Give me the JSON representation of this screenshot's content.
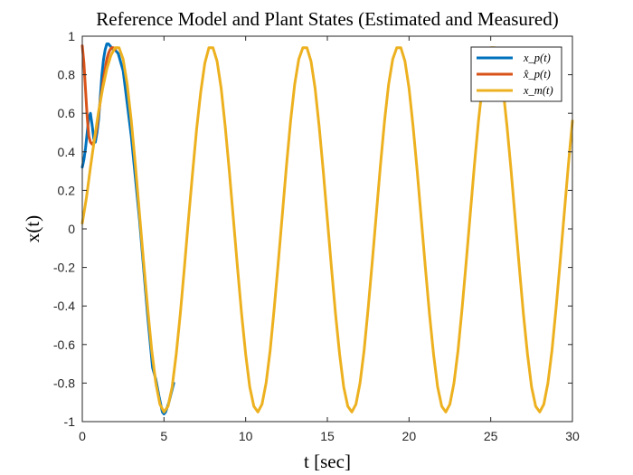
{
  "chart_data": {
    "type": "line",
    "title": "Reference Model and Plant States (Estimated and Measured)",
    "xlabel": "t  [sec]",
    "ylabel": "x(t)",
    "xlim": [
      0,
      30
    ],
    "ylim": [
      -1,
      1
    ],
    "xticks": [
      0,
      5,
      10,
      15,
      20,
      25,
      30
    ],
    "yticks": [
      -1,
      -0.8,
      -0.6,
      -0.4,
      -0.2,
      0,
      0.2,
      0.4,
      0.6,
      0.8,
      1
    ],
    "xtick_labels": [
      "0",
      "5",
      "10",
      "15",
      "20",
      "25",
      "30"
    ],
    "ytick_labels": [
      "-1",
      "-0.8",
      "-0.6",
      "-0.4",
      "-0.2",
      "0",
      "0.2",
      "0.4",
      "0.6",
      "0.8",
      "1"
    ],
    "grid": false,
    "legend_position": "top-right",
    "series": [
      {
        "name": "x_p(t)",
        "color": "#0072BD",
        "x": [
          0,
          0.1,
          0.2,
          0.3,
          0.4,
          0.5,
          0.6,
          0.7,
          0.8,
          0.9,
          1.0,
          1.1,
          1.2,
          1.3,
          1.4,
          1.5,
          1.6,
          1.7,
          1.8,
          1.9,
          2.0,
          2.2,
          2.5,
          3.0,
          3.5,
          4.0,
          4.3,
          4.5,
          4.7,
          4.9,
          5.0,
          5.1,
          5.3,
          5.6
        ],
        "y": [
          0.32,
          0.36,
          0.42,
          0.5,
          0.58,
          0.6,
          0.54,
          0.47,
          0.45,
          0.5,
          0.57,
          0.68,
          0.8,
          0.88,
          0.93,
          0.96,
          0.96,
          0.95,
          0.94,
          0.93,
          0.93,
          0.91,
          0.82,
          0.48,
          0.05,
          -0.45,
          -0.72,
          -0.78,
          -0.87,
          -0.95,
          -0.96,
          -0.95,
          -0.9,
          -0.8
        ]
      },
      {
        "name": "x̂_p(t)",
        "color": "#D95319",
        "x": [
          0,
          0.1,
          0.2,
          0.3,
          0.4,
          0.5,
          0.6,
          0.7,
          0.8,
          0.9,
          1.0,
          1.1,
          1.2,
          1.3,
          1.4,
          1.5,
          1.6,
          1.7,
          1.8,
          1.9,
          2.0
        ],
        "y": [
          0.95,
          0.86,
          0.72,
          0.58,
          0.48,
          0.45,
          0.44,
          0.45,
          0.48,
          0.53,
          0.6,
          0.66,
          0.72,
          0.78,
          0.83,
          0.88,
          0.91,
          0.93,
          0.94,
          0.94,
          0.93
        ]
      },
      {
        "name": "x_m(t)",
        "color": "#EDB120",
        "x": [
          0,
          0.25,
          0.5,
          0.75,
          1.0,
          1.25,
          1.5,
          1.75,
          2.0,
          2.25,
          2.5,
          2.75,
          3.0,
          3.25,
          3.5,
          3.75,
          4.0,
          4.25,
          4.5,
          4.75,
          5.0,
          5.25,
          5.5,
          5.75,
          6.0,
          6.25,
          6.5,
          6.75,
          7.0,
          7.25,
          7.5,
          7.75,
          8.0,
          8.25,
          8.5,
          8.75,
          9.0,
          9.25,
          9.5,
          9.75,
          10.0,
          10.25,
          10.5,
          10.75,
          11.0,
          11.25,
          11.5,
          11.75,
          12.0,
          12.25,
          12.5,
          12.75,
          13.0,
          13.25,
          13.5,
          13.75,
          14.0,
          14.25,
          14.5,
          14.75,
          15.0,
          15.25,
          15.5,
          15.75,
          16.0,
          16.25,
          16.5,
          16.75,
          17.0,
          17.25,
          17.5,
          17.75,
          18.0,
          18.25,
          18.5,
          18.75,
          19.0,
          19.25,
          19.5,
          19.75,
          20.0,
          20.25,
          20.5,
          20.75,
          21.0,
          21.25,
          21.5,
          21.75,
          22.0,
          22.25,
          22.5,
          22.75,
          23.0,
          23.25,
          23.5,
          23.75,
          24.0,
          24.25,
          24.5,
          24.75,
          25.0,
          25.25,
          25.5,
          25.75,
          26.0,
          26.25,
          26.5,
          26.75,
          27.0,
          27.25,
          27.5,
          27.75,
          28.0,
          28.25,
          28.5,
          28.75,
          29.0,
          29.25,
          29.5,
          29.75,
          30.0
        ],
        "y": [
          0.03,
          0.16,
          0.32,
          0.47,
          0.61,
          0.73,
          0.83,
          0.9,
          0.94,
          0.94,
          0.88,
          0.75,
          0.56,
          0.33,
          0.08,
          -0.17,
          -0.41,
          -0.63,
          -0.8,
          -0.91,
          -0.95,
          -0.92,
          -0.82,
          -0.65,
          -0.44,
          -0.2,
          0.05,
          0.29,
          0.52,
          0.71,
          0.86,
          0.94,
          0.94,
          0.87,
          0.73,
          0.53,
          0.3,
          0.05,
          -0.2,
          -0.44,
          -0.65,
          -0.82,
          -0.92,
          -0.95,
          -0.91,
          -0.8,
          -0.63,
          -0.41,
          -0.17,
          0.08,
          0.33,
          0.56,
          0.75,
          0.88,
          0.94,
          0.94,
          0.87,
          0.73,
          0.53,
          0.3,
          0.05,
          -0.2,
          -0.44,
          -0.65,
          -0.82,
          -0.92,
          -0.95,
          -0.91,
          -0.8,
          -0.63,
          -0.41,
          -0.17,
          0.08,
          0.33,
          0.56,
          0.75,
          0.88,
          0.94,
          0.94,
          0.87,
          0.73,
          0.53,
          0.3,
          0.05,
          -0.2,
          -0.44,
          -0.65,
          -0.82,
          -0.92,
          -0.95,
          -0.91,
          -0.8,
          -0.63,
          -0.41,
          -0.17,
          0.08,
          0.33,
          0.56,
          0.75,
          0.88,
          0.94,
          0.94,
          0.87,
          0.73,
          0.53,
          0.3,
          0.05,
          -0.2,
          -0.44,
          -0.65,
          -0.82,
          -0.92,
          -0.95,
          -0.91,
          -0.8,
          -0.63,
          -0.41,
          -0.17,
          0.08,
          0.33,
          0.56
        ]
      }
    ]
  }
}
